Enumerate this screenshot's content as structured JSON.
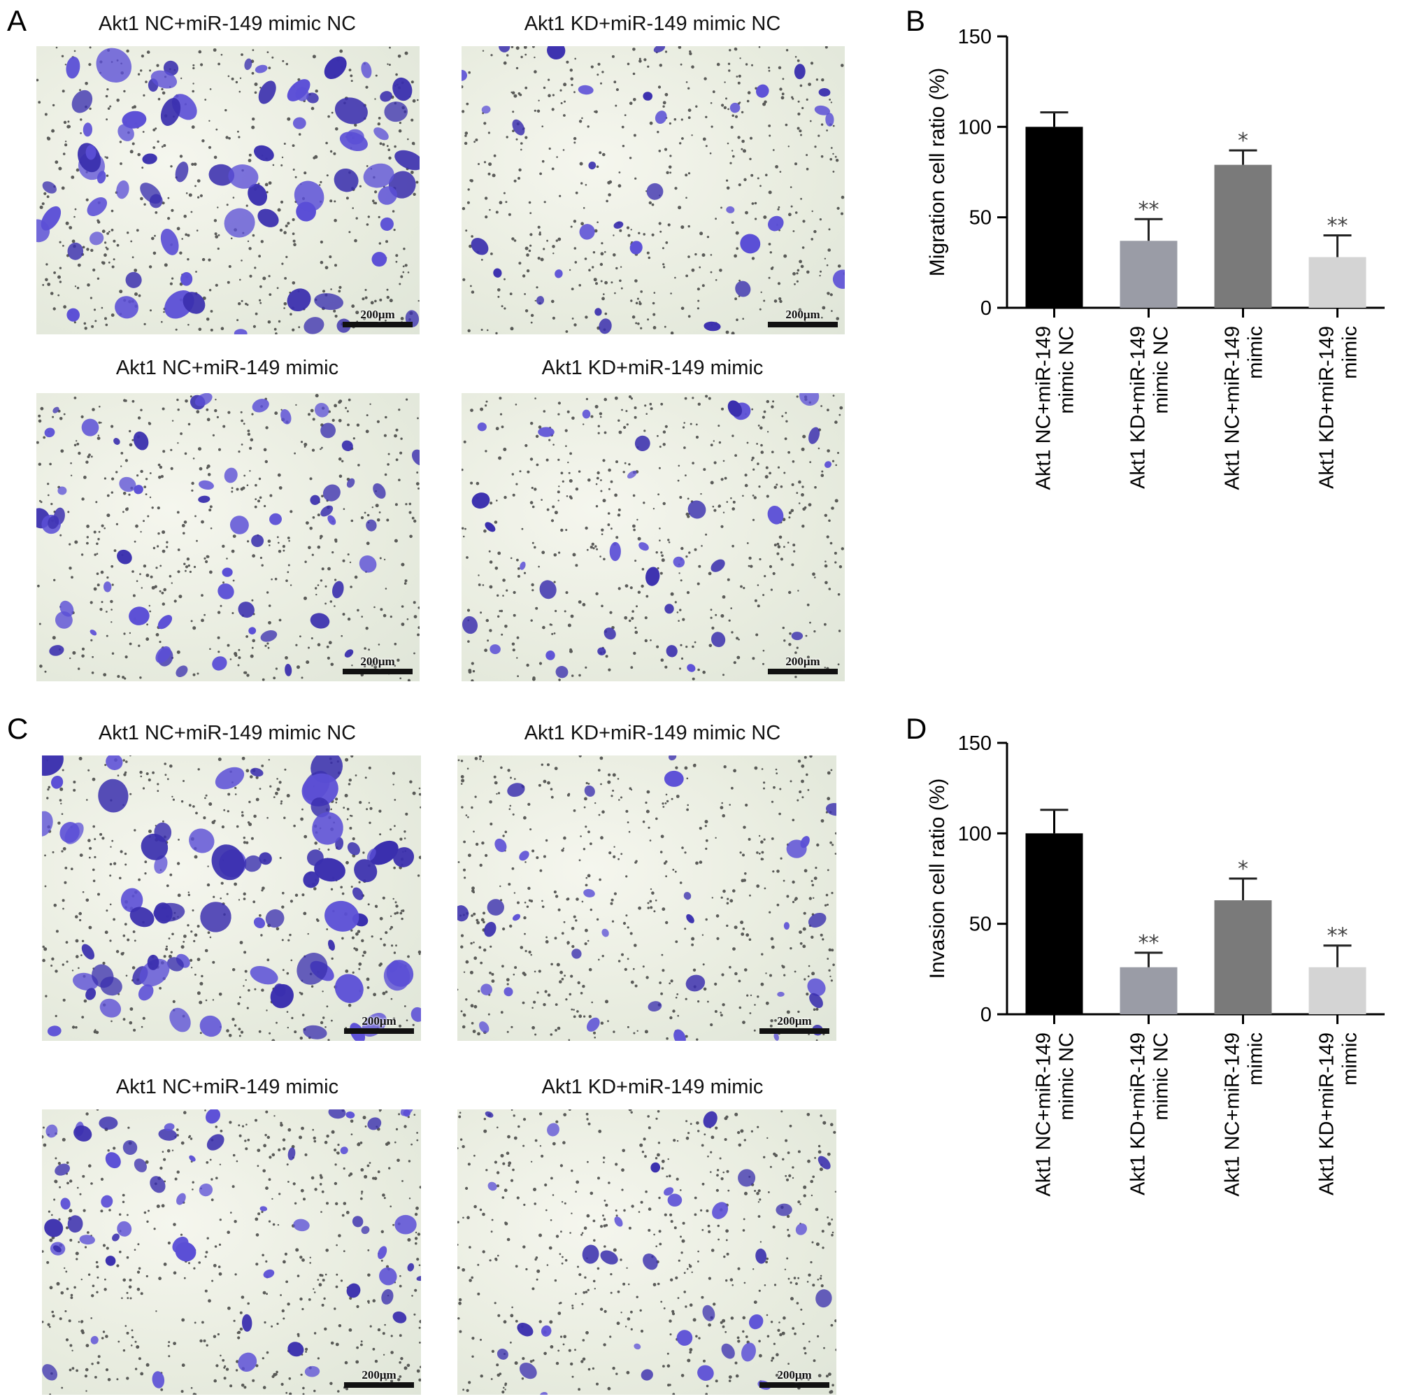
{
  "panels": {
    "A": {
      "letter": "A",
      "images": [
        {
          "caption": "Akt1 NC+miR-149 mimic NC",
          "scale": "200μm",
          "density": "high"
        },
        {
          "caption": "Akt1 KD+miR-149 mimic NC",
          "scale": "200μm",
          "density": "low"
        },
        {
          "caption": "Akt1 NC+miR-149 mimic",
          "scale": "200μm",
          "density": "medium"
        },
        {
          "caption": "Akt1 KD+miR-149 mimic",
          "scale": "200μm",
          "density": "low"
        }
      ]
    },
    "C": {
      "letter": "C",
      "images": [
        {
          "caption": "Akt1 NC+miR-149 mimic NC",
          "scale": "200μm",
          "density": "high"
        },
        {
          "caption": "Akt1 KD+miR-149 mimic NC",
          "scale": "200μm",
          "density": "low"
        },
        {
          "caption": "Akt1 NC+miR-149 mimic",
          "scale": "200μm",
          "density": "medium"
        },
        {
          "caption": "Akt1 KD+miR-149 mimic",
          "scale": "200μm",
          "density": "low"
        }
      ]
    },
    "B": {
      "letter": "B"
    },
    "D": {
      "letter": "D"
    }
  },
  "colors": {
    "stain": "#5b4fd6",
    "stain_dark": "#3a2fae",
    "bar_black": "#000000",
    "bar_mid_gray": "#9a9ca6",
    "bar_dark_gray": "#7a7a7a",
    "bar_light_gray": "#d4d4d4"
  },
  "chart_data": [
    {
      "panel": "B",
      "type": "bar",
      "title": "",
      "xlabel": "",
      "ylabel": "Migration cell ratio (%)",
      "ylim": [
        0,
        150
      ],
      "yticks": [
        0,
        50,
        100,
        150
      ],
      "categories": [
        "Akt1 NC+miR-149 mimic NC",
        "Akt1 KD+miR-149 mimic NC",
        "Akt1 NC+miR-149 mimic",
        "Akt1 KD+miR-149 mimic"
      ],
      "category_lines": [
        [
          "Akt1 NC+miR-149",
          "mimic NC"
        ],
        [
          "Akt1 KD+miR-149",
          "mimic NC"
        ],
        [
          "Akt1 NC+miR-149",
          "mimic"
        ],
        [
          "Akt1 KD+miR-149",
          "mimic"
        ]
      ],
      "values": [
        100,
        37,
        79,
        28
      ],
      "errors": [
        8,
        12,
        8,
        12
      ],
      "significance": [
        "",
        "**",
        "*",
        "**"
      ],
      "bar_colors": [
        "#000000",
        "#9a9ca6",
        "#7a7a7a",
        "#d4d4d4"
      ]
    },
    {
      "panel": "D",
      "type": "bar",
      "title": "",
      "xlabel": "",
      "ylabel": "Invasion cell ratio (%)",
      "ylim": [
        0,
        150
      ],
      "yticks": [
        0,
        50,
        100,
        150
      ],
      "categories": [
        "Akt1 NC+miR-149 mimic NC",
        "Akt1 KD+miR-149 mimic NC",
        "Akt1 NC+miR-149 mimic",
        "Akt1 KD+miR-149 mimic"
      ],
      "category_lines": [
        [
          "Akt1 NC+miR-149",
          "mimic NC"
        ],
        [
          "Akt1 KD+miR-149",
          "mimic NC"
        ],
        [
          "Akt1 NC+miR-149",
          "mimic"
        ],
        [
          "Akt1 KD+miR-149",
          "mimic"
        ]
      ],
      "values": [
        100,
        26,
        63,
        26
      ],
      "errors": [
        13,
        8,
        12,
        12
      ],
      "significance": [
        "",
        "**",
        "*",
        "**"
      ],
      "bar_colors": [
        "#000000",
        "#9a9ca6",
        "#7a7a7a",
        "#d4d4d4"
      ]
    }
  ]
}
